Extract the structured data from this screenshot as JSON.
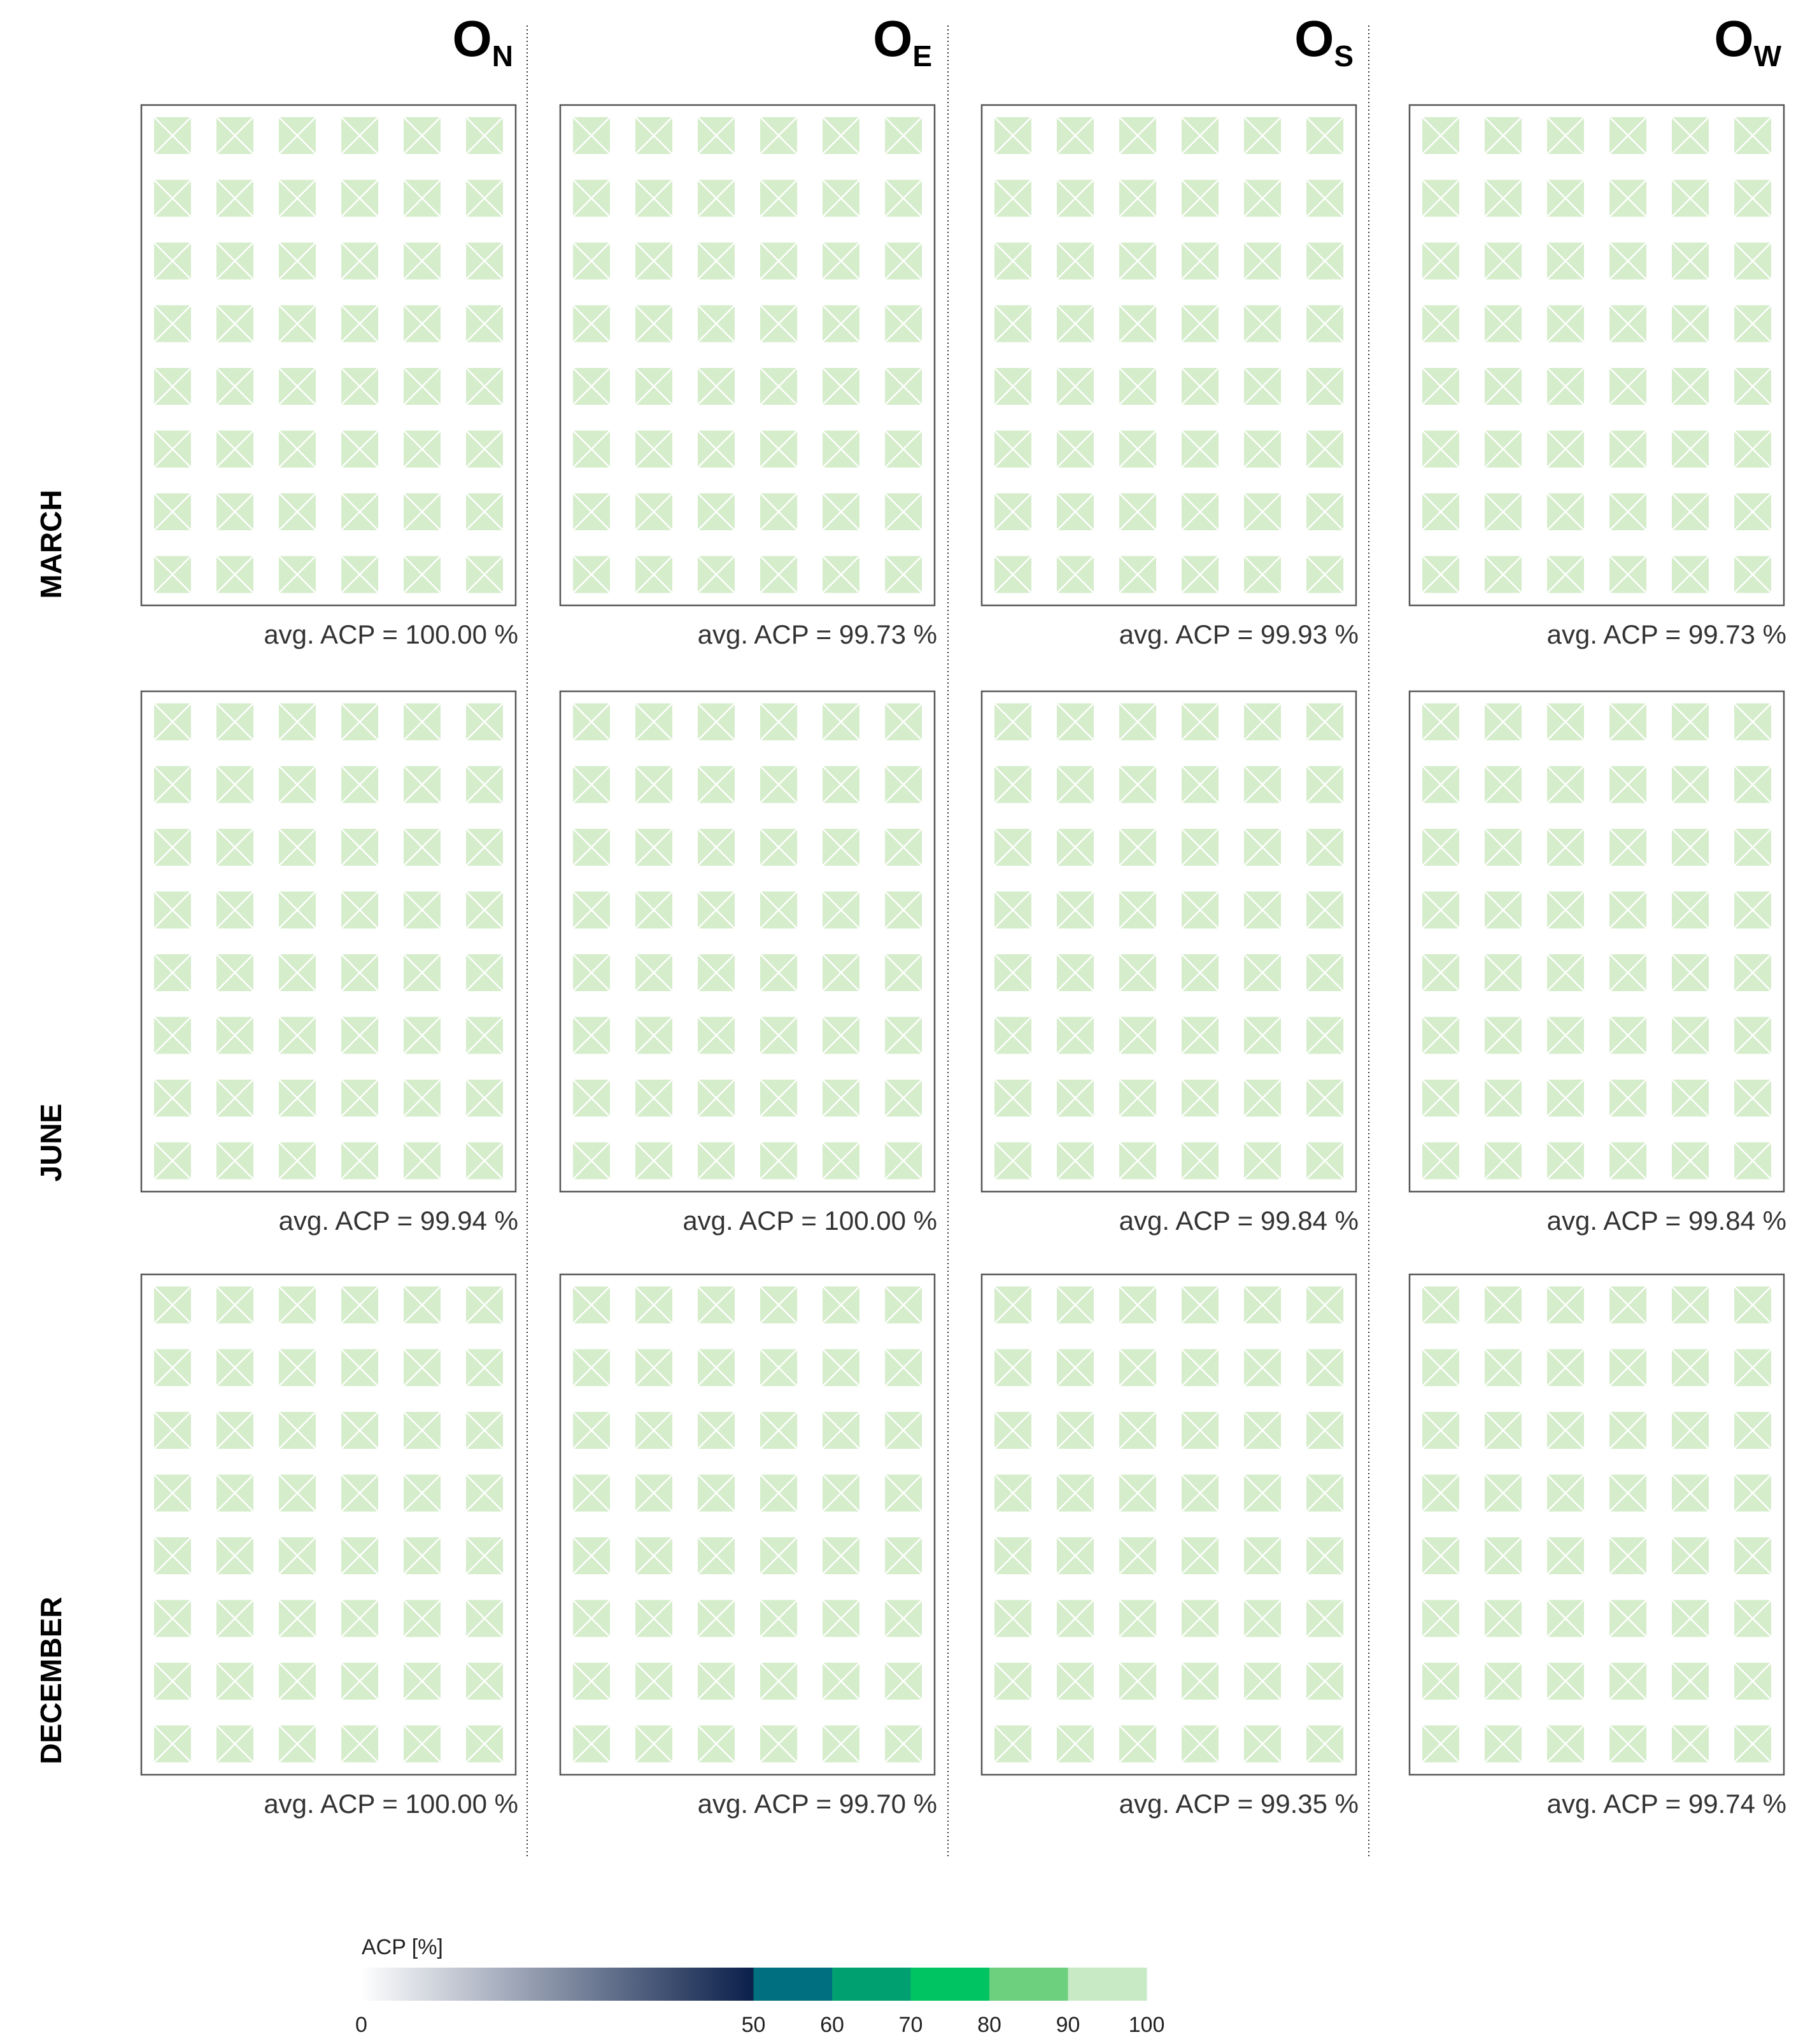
{
  "chart_data": {
    "type": "heatmap",
    "columns": [
      {
        "letter": "O",
        "sub": "N"
      },
      {
        "letter": "O",
        "sub": "E"
      },
      {
        "letter": "O",
        "sub": "S"
      },
      {
        "letter": "O",
        "sub": "W"
      }
    ],
    "rows": [
      "MARCH",
      "JUNE",
      "DECEMBER"
    ],
    "grid": {
      "rows": 8,
      "cols": 6
    },
    "cell_color": "#d5edcb",
    "panels": [
      [
        {
          "caption": "avg. ACP = 100.00 %",
          "avg_acp": 100.0,
          "bin": "90-100"
        },
        {
          "caption": "avg. ACP = 99.73 %",
          "avg_acp": 99.73,
          "bin": "90-100"
        },
        {
          "caption": "avg. ACP = 99.93 %",
          "avg_acp": 99.93,
          "bin": "90-100"
        },
        {
          "caption": "avg. ACP = 99.73 %",
          "avg_acp": 99.73,
          "bin": "90-100"
        }
      ],
      [
        {
          "caption": "avg. ACP = 99.94 %",
          "avg_acp": 99.94,
          "bin": "90-100"
        },
        {
          "caption": "avg. ACP = 100.00 %",
          "avg_acp": 100.0,
          "bin": "90-100"
        },
        {
          "caption": "avg. ACP = 99.84 %",
          "avg_acp": 99.84,
          "bin": "90-100"
        },
        {
          "caption": "avg. ACP = 99.84 %",
          "avg_acp": 99.84,
          "bin": "90-100"
        }
      ],
      [
        {
          "caption": "avg. ACP = 100.00 %",
          "avg_acp": 100.0,
          "bin": "90-100"
        },
        {
          "caption": "avg. ACP = 99.70 %",
          "avg_acp": 99.7,
          "bin": "90-100"
        },
        {
          "caption": "avg. ACP = 99.35 %",
          "avg_acp": 99.35,
          "bin": "90-100"
        },
        {
          "caption": "avg. ACP = 99.74 %",
          "avg_acp": 99.74,
          "bin": "90-100"
        }
      ]
    ],
    "colorbar": {
      "label": "ACP [%]",
      "range": [
        0,
        100
      ],
      "gradient": {
        "from": 0,
        "to": 50,
        "start_color": "#ffffff",
        "end_color": "#0a1f4a"
      },
      "bins": [
        {
          "from": 50,
          "to": 60,
          "color": "#006f7f"
        },
        {
          "from": 60,
          "to": 70,
          "color": "#00a070"
        },
        {
          "from": 70,
          "to": 80,
          "color": "#00c462"
        },
        {
          "from": 80,
          "to": 90,
          "color": "#6dd07e"
        },
        {
          "from": 90,
          "to": 100,
          "color": "#c8eac4"
        }
      ],
      "ticks": [
        "0",
        "50",
        "60",
        "70",
        "80",
        "90",
        "100"
      ]
    }
  }
}
